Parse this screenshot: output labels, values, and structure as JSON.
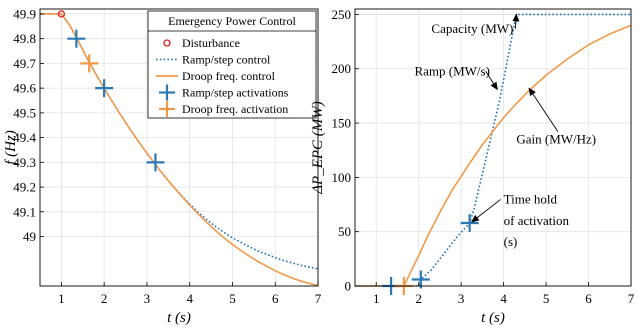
{
  "chart_data": [
    {
      "type": "line",
      "panel": "left",
      "xlabel": "t (s)",
      "ylabel": "f (Hz)",
      "xlim": [
        0.5,
        7
      ],
      "ylim": [
        48.8,
        49.92
      ],
      "xticks": [
        1,
        2,
        3,
        4,
        5,
        6,
        7
      ],
      "yticks": [
        49,
        49.1,
        49.2,
        49.3,
        49.4,
        49.5,
        49.6,
        49.7,
        49.8,
        49.9
      ],
      "grid": true,
      "legend": {
        "title": "Emergency Power Control",
        "placement": "top-right",
        "entries": [
          {
            "label": "Disturbance",
            "style": "circle",
            "color": "#e8201f"
          },
          {
            "label": "Ramp/step control",
            "style": "dotted",
            "color": "#1f6fb8"
          },
          {
            "label": "Droop freq. control",
            "style": "solid",
            "color": "#f39a4a"
          },
          {
            "label": "Ramp/step activations",
            "style": "plus",
            "color": "#2a78b6"
          },
          {
            "label": "Droop freq. activation",
            "style": "plus",
            "color": "#f39a4a"
          }
        ]
      },
      "series": [
        {
          "name": "Ramp/step control",
          "style": "dotted",
          "color": "#1f6fb8",
          "x": [
            0.5,
            1.0,
            1.2,
            1.4,
            1.6,
            1.8,
            2.0,
            2.2,
            2.4,
            2.6,
            2.8,
            3.0,
            3.2,
            3.4,
            3.6,
            3.8,
            4.0,
            4.2,
            4.4,
            4.6,
            4.8,
            5.0,
            5.2,
            5.4,
            5.6,
            5.8,
            6.0,
            6.2,
            6.4,
            6.6,
            6.8,
            7.0
          ],
          "y": [
            49.9,
            49.9,
            49.853,
            49.789,
            49.721,
            49.659,
            49.6,
            49.543,
            49.488,
            49.435,
            49.385,
            49.337,
            49.291,
            49.247,
            49.206,
            49.167,
            49.131,
            49.098,
            49.068,
            49.041,
            49.017,
            48.995,
            48.976,
            48.958,
            48.942,
            48.928,
            48.915,
            48.903,
            48.893,
            48.884,
            48.876,
            48.869
          ]
        },
        {
          "name": "Droop freq. control",
          "style": "solid",
          "color": "#f39a4a",
          "x": [
            0.5,
            1.0,
            1.2,
            1.4,
            1.6,
            1.8,
            2.0,
            2.2,
            2.4,
            2.6,
            2.8,
            3.0,
            3.2,
            3.4,
            3.6,
            3.8,
            4.0,
            4.2,
            4.4,
            4.6,
            4.8,
            5.0,
            5.2,
            5.4,
            5.6,
            5.8,
            6.0,
            6.2,
            6.4,
            6.6,
            6.8,
            7.0
          ],
          "y": [
            49.9,
            49.9,
            49.853,
            49.789,
            49.721,
            49.659,
            49.6,
            49.543,
            49.488,
            49.435,
            49.385,
            49.337,
            49.291,
            49.247,
            49.205,
            49.165,
            49.127,
            49.091,
            49.057,
            49.025,
            48.995,
            48.968,
            48.943,
            48.92,
            48.899,
            48.88,
            48.862,
            48.846,
            48.832,
            48.82,
            48.81,
            48.802
          ]
        }
      ],
      "markers": [
        {
          "name": "Disturbance",
          "shape": "circle",
          "color": "#e8201f",
          "x": 1.0,
          "y": 49.9
        },
        {
          "name": "Ramp/step activations",
          "shape": "plus",
          "color": "#2a78b6",
          "x": 1.35,
          "y": 49.8
        },
        {
          "name": "Ramp/step activations",
          "shape": "plus",
          "color": "#2a78b6",
          "x": 2.0,
          "y": 49.6
        },
        {
          "name": "Ramp/step activations",
          "shape": "plus",
          "color": "#2a78b6",
          "x": 3.2,
          "y": 49.3
        },
        {
          "name": "Droop freq. activation",
          "shape": "plus",
          "color": "#f39a4a",
          "x": 1.65,
          "y": 49.7
        }
      ]
    },
    {
      "type": "line",
      "panel": "right",
      "xlabel": "t (s)",
      "ylabel": "ΔP_EPC (MW)",
      "xlim": [
        0.5,
        7
      ],
      "ylim": [
        0,
        255
      ],
      "xticks": [
        1,
        2,
        3,
        4,
        5,
        6,
        7
      ],
      "yticks": [
        0,
        50,
        100,
        150,
        200,
        250
      ],
      "grid": true,
      "series": [
        {
          "name": "Ramp/step control",
          "style": "dotted",
          "color": "#1f6fb8",
          "x": [
            0.5,
            1.35,
            2.0,
            2.05,
            2.3,
            2.6,
            2.9,
            3.2,
            3.3,
            3.6,
            3.9,
            4.2,
            4.3,
            5.0,
            6.0,
            7.0
          ],
          "y": [
            0,
            0,
            0,
            6,
            15,
            30,
            45,
            58,
            70,
            120,
            170,
            230,
            250,
            250,
            250,
            250
          ]
        },
        {
          "name": "Droop freq. control",
          "style": "solid",
          "color": "#f39a4a",
          "x": [
            0.5,
            1.65,
            1.8,
            2.0,
            2.2,
            2.5,
            2.8,
            3.0,
            3.2,
            3.5,
            3.8,
            4.0,
            4.3,
            4.6,
            5.0,
            5.5,
            6.0,
            6.5,
            7.0
          ],
          "y": [
            0,
            0,
            12,
            28,
            45,
            68,
            89,
            101,
            113,
            130,
            145,
            155,
            168,
            180,
            194,
            209,
            222,
            232,
            240
          ]
        }
      ],
      "markers": [
        {
          "name": "Ramp/step activations",
          "shape": "plus",
          "color": "#2a78b6",
          "x": 1.35,
          "y": 0
        },
        {
          "name": "Ramp/step activations",
          "shape": "plus",
          "color": "#2a78b6",
          "x": 2.05,
          "y": 6
        },
        {
          "name": "Ramp/step activations",
          "shape": "plus",
          "color": "#2a78b6",
          "x": 3.2,
          "y": 58
        },
        {
          "name": "Droop freq. activation",
          "shape": "plus",
          "color": "#f39a4a",
          "x": 1.65,
          "y": 0
        }
      ],
      "annotations": [
        {
          "text": "Capacity (MW)",
          "tx": 2.3,
          "ty": 233,
          "ax": 4.3,
          "ay": 250
        },
        {
          "text": "Ramp (MW/s)",
          "tx": 1.9,
          "ty": 194,
          "ax": 3.85,
          "ay": 181
        },
        {
          "text": "Gain (MW/Hz)",
          "tx": 4.3,
          "ty": 131,
          "ax": 4.6,
          "ay": 182
        },
        {
          "text": "Time hold",
          "tx": 4.0,
          "ty": 76,
          "ax": 3.25,
          "ay": 59
        },
        {
          "text": "of activation",
          "tx": 4.0,
          "ty": 56
        },
        {
          "text": "(s)",
          "tx": 4.0,
          "ty": 37
        }
      ]
    }
  ]
}
